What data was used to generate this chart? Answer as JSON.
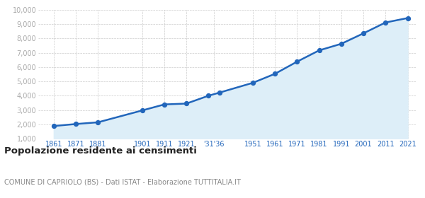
{
  "years": [
    1861,
    1871,
    1881,
    1901,
    1911,
    1921,
    1931,
    1936,
    1951,
    1961,
    1971,
    1981,
    1991,
    2001,
    2011,
    2021
  ],
  "population": [
    1880,
    2020,
    2140,
    2970,
    3390,
    3450,
    4000,
    4220,
    4900,
    5530,
    6380,
    7170,
    7630,
    8360,
    9120,
    9430
  ],
  "x_tick_labels": [
    "1861",
    "1871",
    "1881",
    "1901",
    "1911",
    "1921",
    "'31'36",
    "1951",
    "1961",
    "1971",
    "1981",
    "1991",
    "2001",
    "2011",
    "2021"
  ],
  "x_tick_positions": [
    1861,
    1871,
    1881,
    1901,
    1911,
    1921,
    1933.5,
    1951,
    1961,
    1971,
    1981,
    1991,
    2001,
    2011,
    2021
  ],
  "ylim": [
    1000,
    10000
  ],
  "yticks": [
    1000,
    2000,
    3000,
    4000,
    5000,
    6000,
    7000,
    8000,
    9000,
    10000
  ],
  "ytick_labels": [
    "1,000",
    "2,000",
    "3,000",
    "4,000",
    "5,000",
    "6,000",
    "7,000",
    "8,000",
    "9,000",
    "10,000"
  ],
  "line_color": "#2266bb",
  "fill_color": "#ddeef8",
  "marker_color": "#2266bb",
  "grid_color": "#cccccc",
  "bg_color": "#ffffff",
  "title": "Popolazione residente ai censimenti",
  "subtitle": "COMUNE DI CAPRIOLO (BS) - Dati ISTAT - Elaborazione TUTTITALIA.IT",
  "title_color": "#222222",
  "subtitle_color": "#888888",
  "ytick_color": "#aaaaaa",
  "xtick_color": "#2266bb",
  "xlim_left": 1854,
  "xlim_right": 2025
}
